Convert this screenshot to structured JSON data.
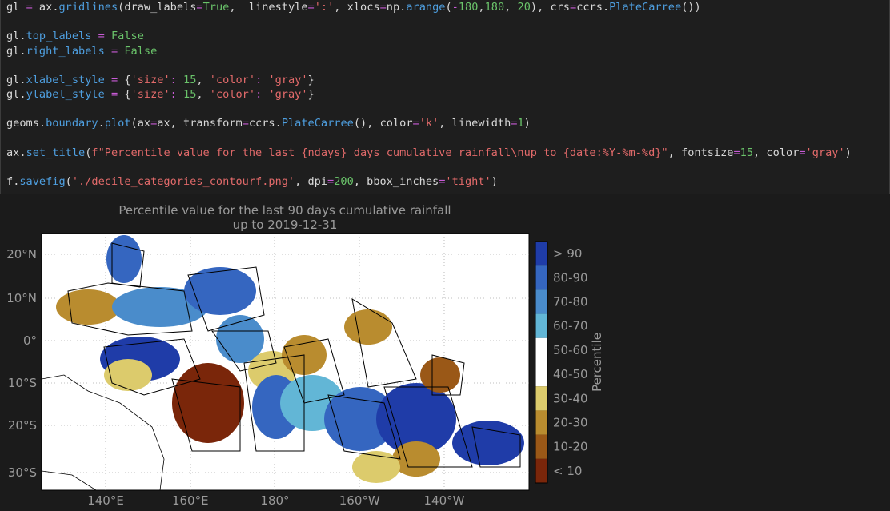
{
  "code": {
    "blocks": [
      [
        "gl = ax.gridlines(draw_labels=True,  linestyle=':', xlocs=np.arange(-180,180, 20), crs=ccrs.PlateCarree())"
      ],
      [
        "gl.top_labels = False",
        "gl.right_labels = False"
      ],
      [
        "gl.xlabel_style = {'size': 15, 'color': 'gray'}",
        "gl.ylabel_style = {'size': 15, 'color': 'gray'}"
      ],
      [
        "geoms.boundary.plot(ax=ax, transform=ccrs.PlateCarree(), color='k', linewidth=1)"
      ],
      [
        "ax.set_title(f\"Percentile value for the last {ndays} days cumulative rainfall\\nup to {date:%Y-%m-%d}\", fontsize=15, color='gray')"
      ],
      [
        "f.savefig('./decile_categories_contourf.png', dpi=200, bbox_inches='tight')"
      ]
    ]
  },
  "output": {
    "title": [
      "Percentile value for the last 90 days cumulative rainfall",
      "up to 2019-12-31"
    ],
    "lat_labels": [
      "20°N",
      "10°N",
      "0°",
      "10°S",
      "20°S",
      "30°S"
    ],
    "lon_labels": [
      "140°E",
      "160°E",
      "180°",
      "160°W",
      "140°W"
    ],
    "colorbar": {
      "label": "Percentile",
      "classes": [
        {
          "label": "> 90",
          "color": "#1f3ca8"
        },
        {
          "label": "80-90",
          "color": "#3566c0"
        },
        {
          "label": "70-80",
          "color": "#4a8ccb"
        },
        {
          "label": "60-70",
          "color": "#62b6d6"
        },
        {
          "label": "50-60",
          "color": "#ffffff"
        },
        {
          "label": "40-50",
          "color": "#ffffff"
        },
        {
          "label": "30-40",
          "color": "#dccb6c"
        },
        {
          "label": "20-30",
          "color": "#b98c2f"
        },
        {
          "label": "10-20",
          "color": "#9a5817"
        },
        {
          "label": "< 10",
          "color": "#7a260a"
        }
      ]
    }
  }
}
